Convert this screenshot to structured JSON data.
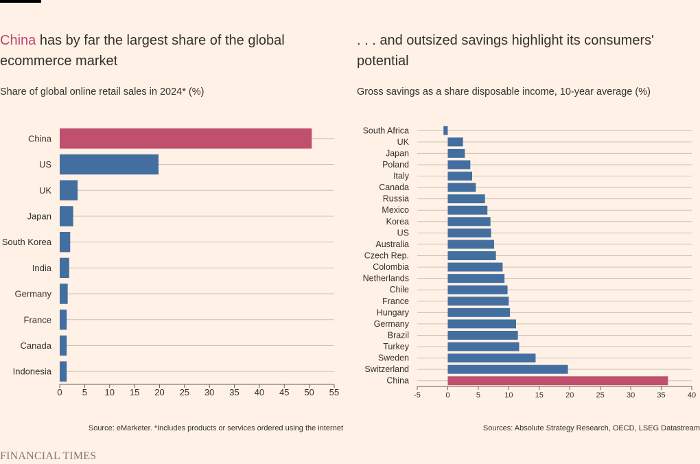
{
  "brand": "FINANCIAL TIMES",
  "chart_data": [
    {
      "type": "bar",
      "orientation": "horizontal",
      "title_highlight": "China",
      "title_rest": " has by far the largest share of the global ecommerce market",
      "subtitle": "Share of global online retail sales in 2024* (%)",
      "source": "Source: eMarketer. *Includes products or services ordered using the internet",
      "categories": [
        "China",
        "US",
        "UK",
        "Japan",
        "South Korea",
        "India",
        "Germany",
        "France",
        "Canada",
        "Indonesia"
      ],
      "values": [
        50.5,
        19.8,
        3.6,
        2.7,
        2.1,
        1.9,
        1.6,
        1.4,
        1.4,
        1.4
      ],
      "highlight": "China",
      "xlim": [
        0,
        55
      ],
      "xticks": [
        0,
        5,
        10,
        15,
        20,
        25,
        30,
        35,
        40,
        45,
        50,
        55
      ],
      "colors": {
        "bar": "#426f9f",
        "highlight": "#c0506e",
        "grid": "#ccc1b7",
        "axis": "#66605c"
      }
    },
    {
      "type": "bar",
      "orientation": "horizontal",
      "title": ". . . and outsized savings highlight its consumers' potential",
      "subtitle": "Gross savings as a share disposable income, 10-year average (%)",
      "source": "Sources: Absolute Strategy Research, OECD, LSEG Datastream",
      "categories": [
        "South Africa",
        "UK",
        "Japan",
        "Poland",
        "Italy",
        "Canada",
        "Russia",
        "Mexico",
        "Korea",
        "US",
        "Australia",
        "Czech Rep.",
        "Colombia",
        "Netherlands",
        "Chile",
        "France",
        "Hungary",
        "Germany",
        "Brazil",
        "Turkey",
        "Sweden",
        "Switzerland",
        "China"
      ],
      "values": [
        -0.7,
        2.5,
        2.8,
        3.7,
        4.0,
        4.6,
        6.1,
        6.5,
        7.0,
        7.1,
        7.6,
        7.9,
        9.0,
        9.3,
        9.8,
        10.0,
        10.2,
        11.2,
        11.5,
        11.7,
        14.4,
        19.7,
        36.1
      ],
      "highlight": "China",
      "xlim": [
        -5,
        40
      ],
      "xticks": [
        -5,
        0,
        5,
        10,
        15,
        20,
        25,
        30,
        35,
        40
      ],
      "colors": {
        "bar": "#426f9f",
        "highlight": "#c0506e",
        "grid": "#ccc1b7",
        "axis": "#66605c"
      }
    }
  ]
}
